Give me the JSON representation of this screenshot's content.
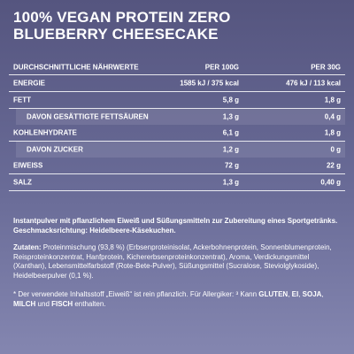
{
  "title": [
    "100% VEGAN PROTEIN ZERO",
    "BLUEBERRY CHEESECAKE"
  ],
  "table": {
    "header": [
      "DURCHSCHNITTLICHE NÄHRWERTE",
      "PER 100G",
      "PER 30G"
    ],
    "rows": [
      {
        "label": "ENERGIE",
        "per100": "1585 kJ / 375 kcal",
        "per30": "476 kJ / 113 kcal",
        "sub": false
      },
      {
        "label": "FETT",
        "per100": "5,8 g",
        "per30": "1,8 g",
        "sub": false
      },
      {
        "label": "DAVON GESÄTTIGTE FETTSÄUREN",
        "per100": "1,3 g",
        "per30": "0,4 g",
        "sub": true
      },
      {
        "label": "KOHLENHYDRATE",
        "per100": "6,1 g",
        "per30": "1,8 g",
        "sub": false
      },
      {
        "label": "DAVON ZUCKER",
        "per100": "1,2 g",
        "per30": "0 g",
        "sub": true
      },
      {
        "label": "EIWEISS",
        "per100": "72 g",
        "per30": "22 g",
        "sub": false
      },
      {
        "label": "SALZ",
        "per100": "1,3 g",
        "per30": "0,40 g",
        "sub": false
      }
    ]
  },
  "intro": "Instantpulver mit pflanzlichem Eiweiß und Süßungsmitteln zur Zubereitung eines Sportgetränks. Geschmacksrichtung: Heidelbeere-Käsekuchen.",
  "ingredients": [
    {
      "text": "Zutaten:",
      "bold": true
    },
    {
      "text": " Proteinmischung (93,8 %) (Erbsenproteinisolat, Ackerbohnenprotein, Sonnenblumenprotein, Reisproteinkonzentrat, Hanfprotein, Kichererbsenprotein­konzentrat), Aroma, Verdickungsmittel (Xanthan), Lebensmittelfarbstoff (Rote-Bete-Pulver), Süßungsmittel (Sucralose, Steviolglykoside), Heidelbeerpulver (0,1 %).",
      "bold": false
    }
  ],
  "footnote": [
    {
      "text": "* Der verwendete Inhaltsstoff „Eiweiß“ ist rein pflanzlich. Für Allergiker: ³ Kann ",
      "bold": false
    },
    {
      "text": "GLUTEN",
      "bold": true
    },
    {
      "text": ", ",
      "bold": false
    },
    {
      "text": "EI",
      "bold": true
    },
    {
      "text": ", ",
      "bold": false
    },
    {
      "text": "SOJA",
      "bold": true
    },
    {
      "text": ", ",
      "bold": false
    },
    {
      "text": "MILCH",
      "bold": true
    },
    {
      "text": " und ",
      "bold": false
    },
    {
      "text": "FISCH",
      "bold": true
    },
    {
      "text": " enthalten.",
      "bold": false
    }
  ]
}
